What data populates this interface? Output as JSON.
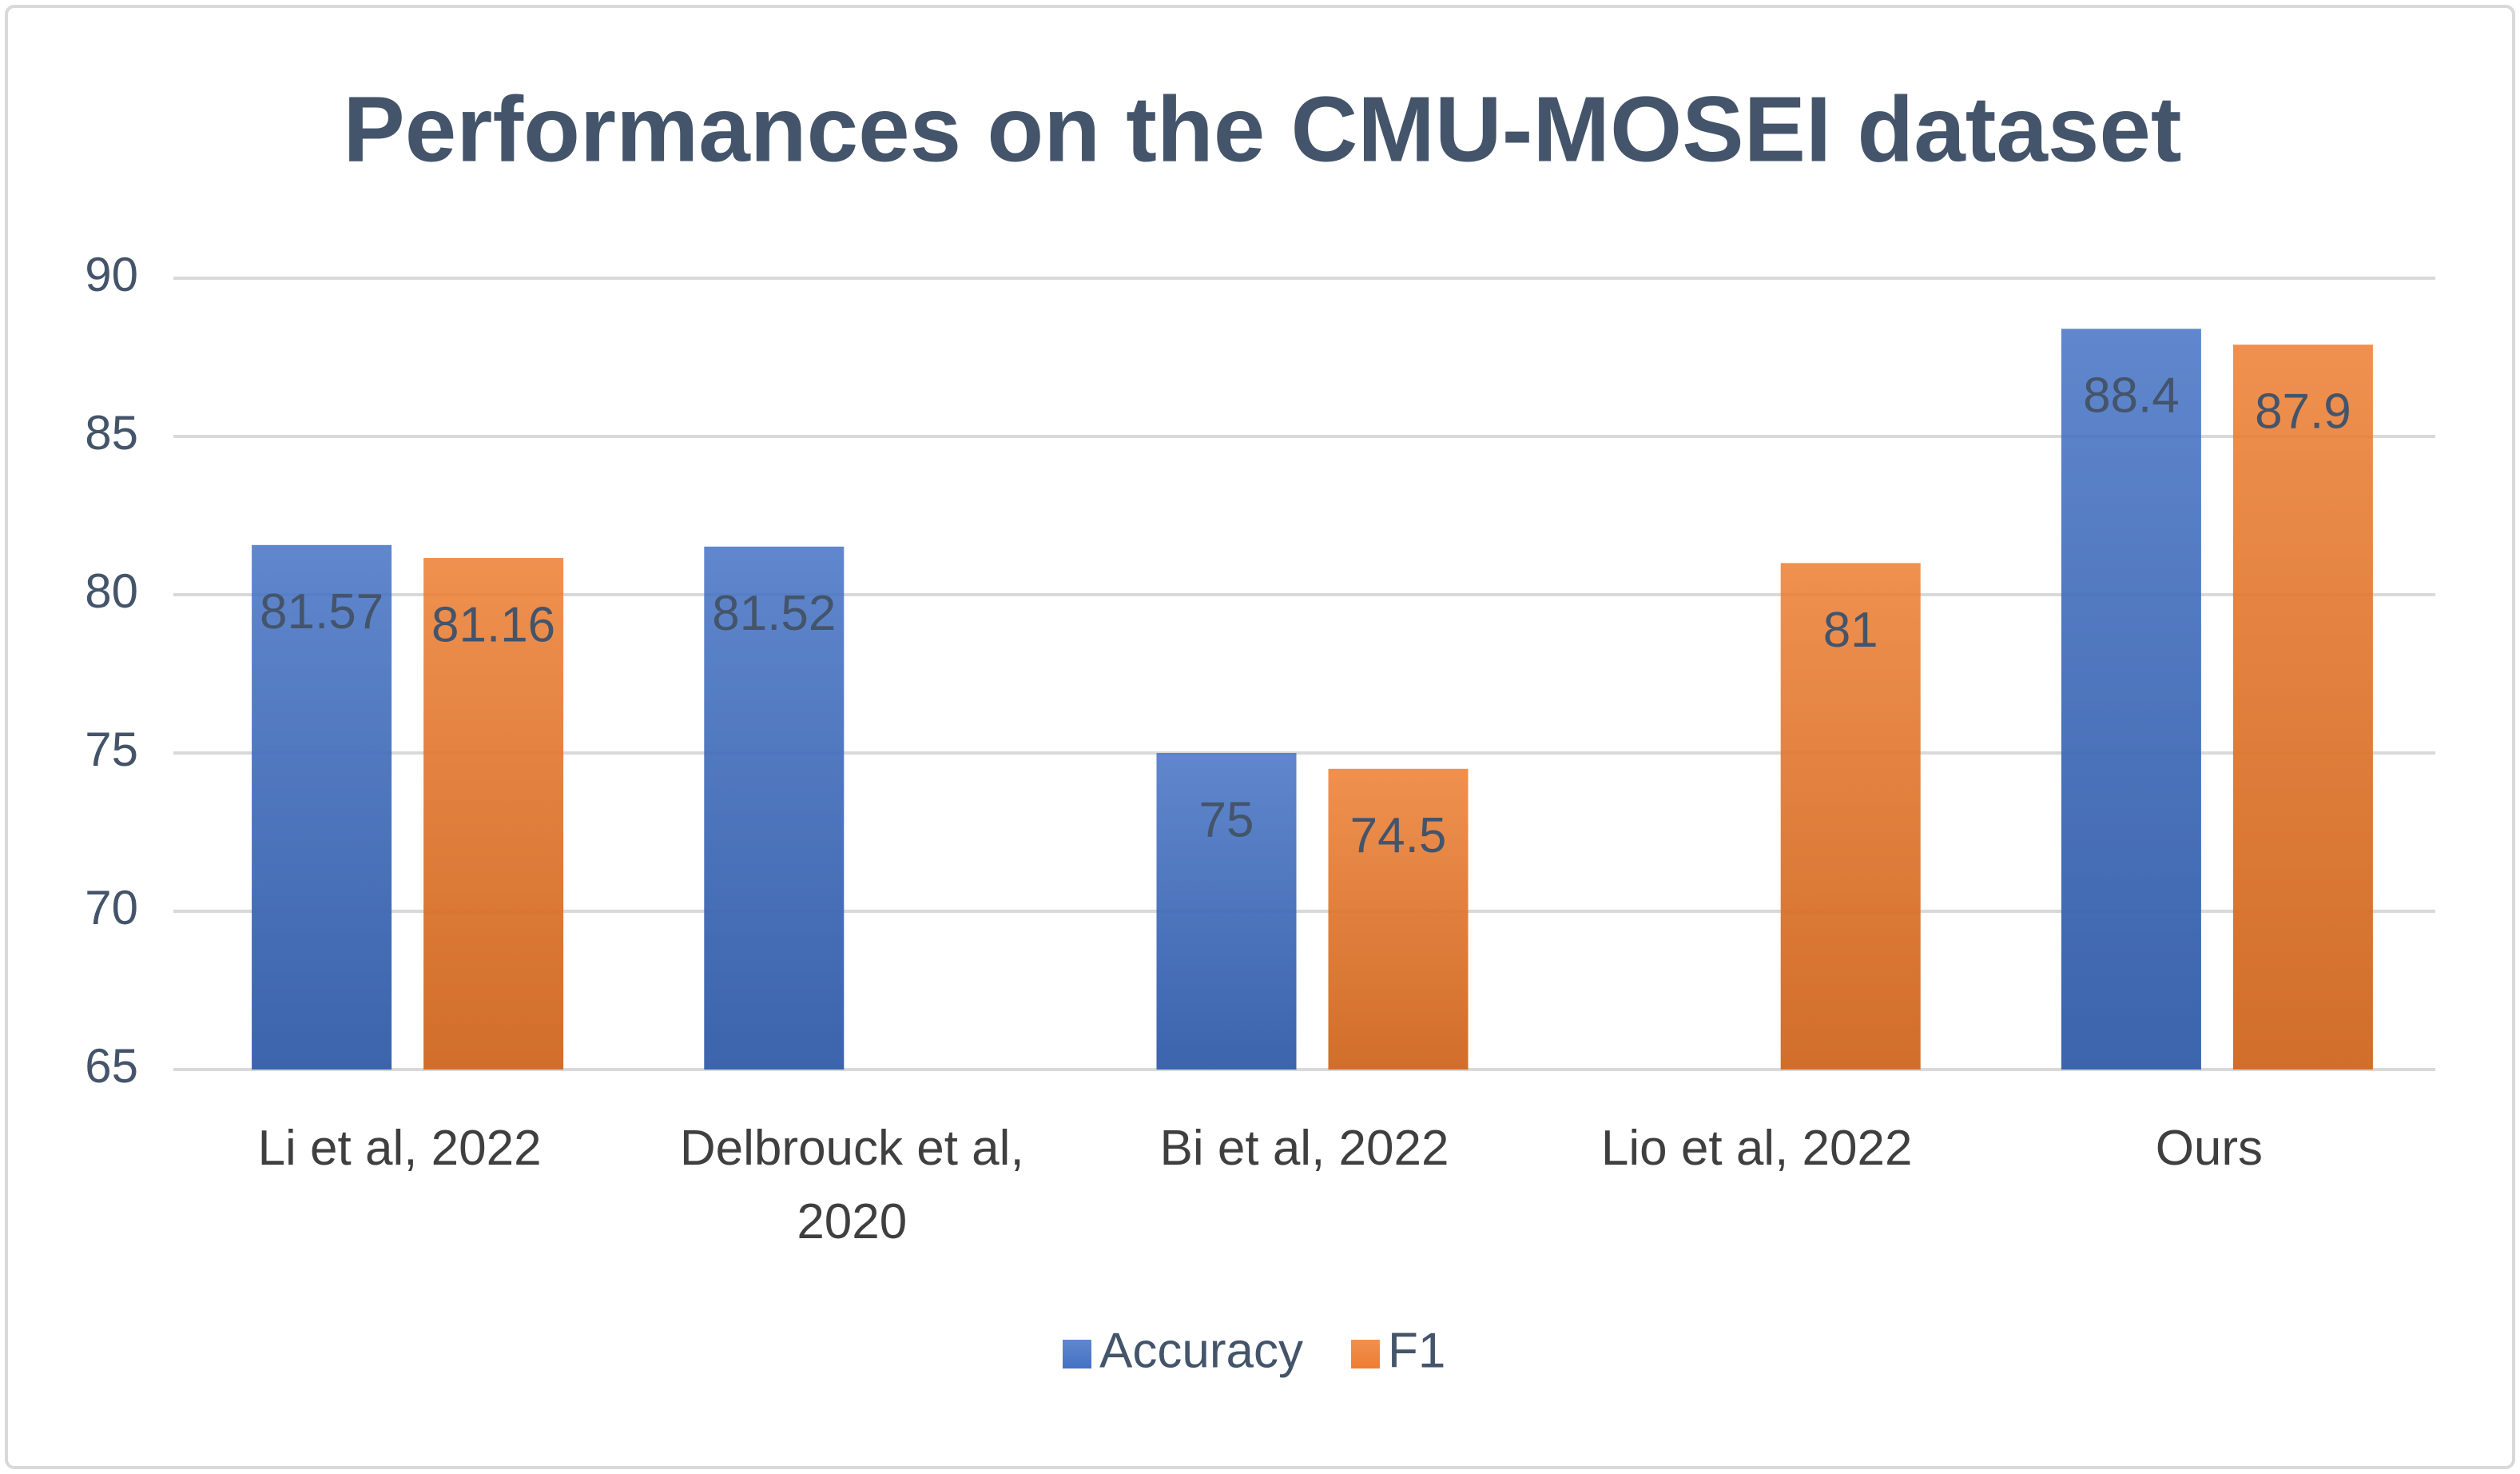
{
  "chart_data": {
    "type": "bar",
    "title": "Performances on the CMU-MOSEI dataset",
    "categories": [
      "Li et al, 2022",
      "Delbrouck et al, 2020",
      "Bi et al, 2022",
      "Lio et al, 2022",
      "Ours"
    ],
    "series": [
      {
        "name": "Accuracy",
        "color": "#4472c4",
        "values": [
          81.57,
          81.52,
          75,
          null,
          88.4
        ]
      },
      {
        "name": "F1",
        "color": "#ed7d31",
        "values": [
          81.16,
          null,
          74.5,
          81,
          87.9
        ]
      }
    ],
    "ylim": [
      65,
      90
    ],
    "yticks": [
      65,
      70,
      75,
      80,
      85,
      90
    ],
    "grid": true,
    "legend": "bottom"
  }
}
